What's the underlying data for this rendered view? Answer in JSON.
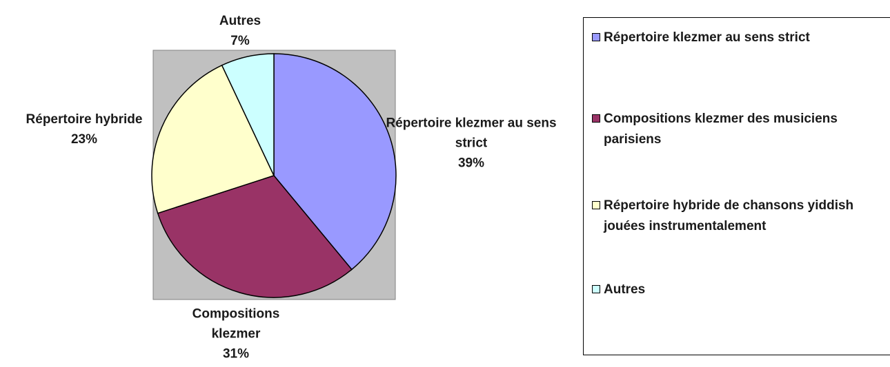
{
  "chart_data": {
    "type": "pie",
    "categories": [
      "Répertoire klezmer au sens strict",
      "Compositions klezmer des musiciens parisiens",
      "Répertoire hybride de chansons yiddish jouées instrumentalement",
      "Autres"
    ],
    "label_names": [
      "Répertoire klezmer au sens strict",
      "Compositions klezmer",
      "Répertoire hybride",
      "Autres"
    ],
    "values": [
      39,
      31,
      23,
      7
    ],
    "value_labels": [
      "39%",
      "31%",
      "23%",
      "7%"
    ],
    "colors": [
      "#9999ff",
      "#993366",
      "#ffffcc",
      "#ccffff"
    ],
    "legend": "right"
  }
}
